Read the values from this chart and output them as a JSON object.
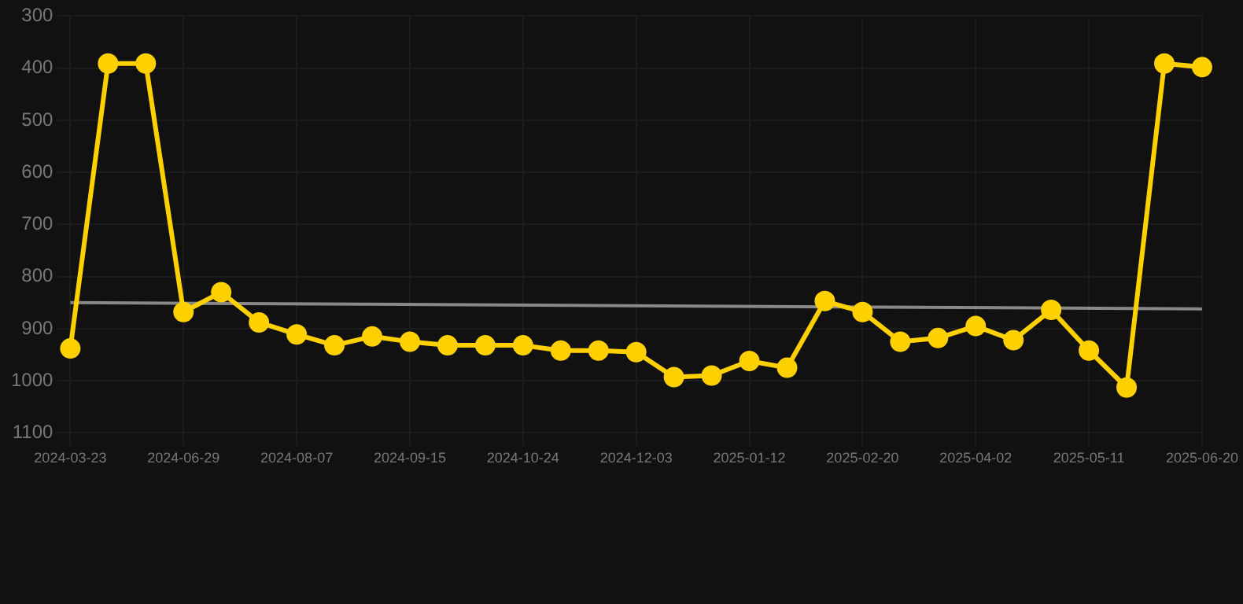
{
  "chart_data": {
    "type": "line",
    "categories": [
      "2024-03-23",
      null,
      null,
      "2024-06-29",
      null,
      null,
      "2024-08-07",
      null,
      null,
      "2024-09-15",
      null,
      null,
      "2024-10-24",
      null,
      null,
      "2024-12-03",
      null,
      null,
      "2025-01-12",
      null,
      null,
      "2025-02-20",
      null,
      null,
      "2025-04-02",
      null,
      null,
      "2025-05-11",
      null,
      null,
      "2025-06-20"
    ],
    "series": [
      {
        "color": "#ffd000",
        "marker": "circle",
        "values": [
          938,
          391,
          391,
          868,
          830,
          888,
          911,
          932,
          915,
          925,
          932,
          932,
          932,
          942,
          942,
          945,
          993,
          990,
          962,
          975,
          847,
          868,
          925,
          918,
          895,
          922,
          864,
          942,
          1013,
          391,
          398
        ]
      },
      {
        "type": "line",
        "color": "#888888",
        "marker": "none",
        "values": [
          850,
          null,
          null,
          null,
          null,
          null,
          null,
          null,
          null,
          null,
          null,
          null,
          null,
          null,
          null,
          null,
          null,
          null,
          null,
          null,
          null,
          null,
          null,
          null,
          null,
          null,
          null,
          null,
          null,
          null,
          862
        ]
      }
    ],
    "ylim": [
      1100,
      300
    ],
    "yticks": [
      300,
      400,
      500,
      600,
      700,
      800,
      900,
      1000,
      1100
    ],
    "grid": true
  }
}
